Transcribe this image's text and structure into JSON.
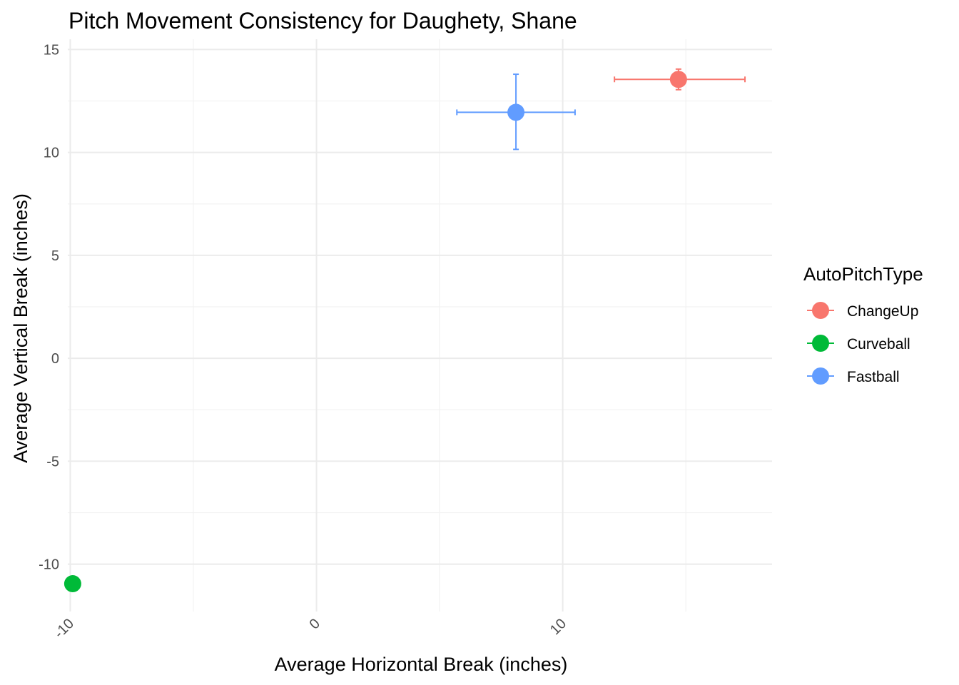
{
  "chart_data": {
    "type": "scatter",
    "title": "Pitch Movement Consistency for Daughety, Shane",
    "xlabel": "Average Horizontal Break (inches)",
    "ylabel": "Average Vertical Break (inches)",
    "xlim": [
      -10.1,
      18.5
    ],
    "ylim": [
      -12.3,
      15.5
    ],
    "x_ticks": [
      -10,
      0,
      10
    ],
    "x_tick_labels": [
      "-10",
      "0",
      "10"
    ],
    "y_ticks": [
      -10,
      -5,
      0,
      5,
      10,
      15
    ],
    "y_tick_labels": [
      "-10",
      "-5",
      "0",
      "5",
      "10",
      "15"
    ],
    "grid": true,
    "legend": {
      "title": "AutoPitchType",
      "position": "right"
    },
    "series": [
      {
        "name": "ChangeUp",
        "color": "#F8766D",
        "x": 14.7,
        "y": 13.55,
        "x_err": [
          12.1,
          17.4
        ],
        "y_err": [
          13.05,
          14.05
        ]
      },
      {
        "name": "Curveball",
        "color": "#00BA38",
        "x": -9.9,
        "y": -10.95,
        "x_err": null,
        "y_err": null
      },
      {
        "name": "Fastball",
        "color": "#619CFF",
        "x": 8.1,
        "y": 11.95,
        "x_err": [
          5.7,
          10.5
        ],
        "y_err": [
          10.15,
          13.8
        ]
      }
    ]
  }
}
